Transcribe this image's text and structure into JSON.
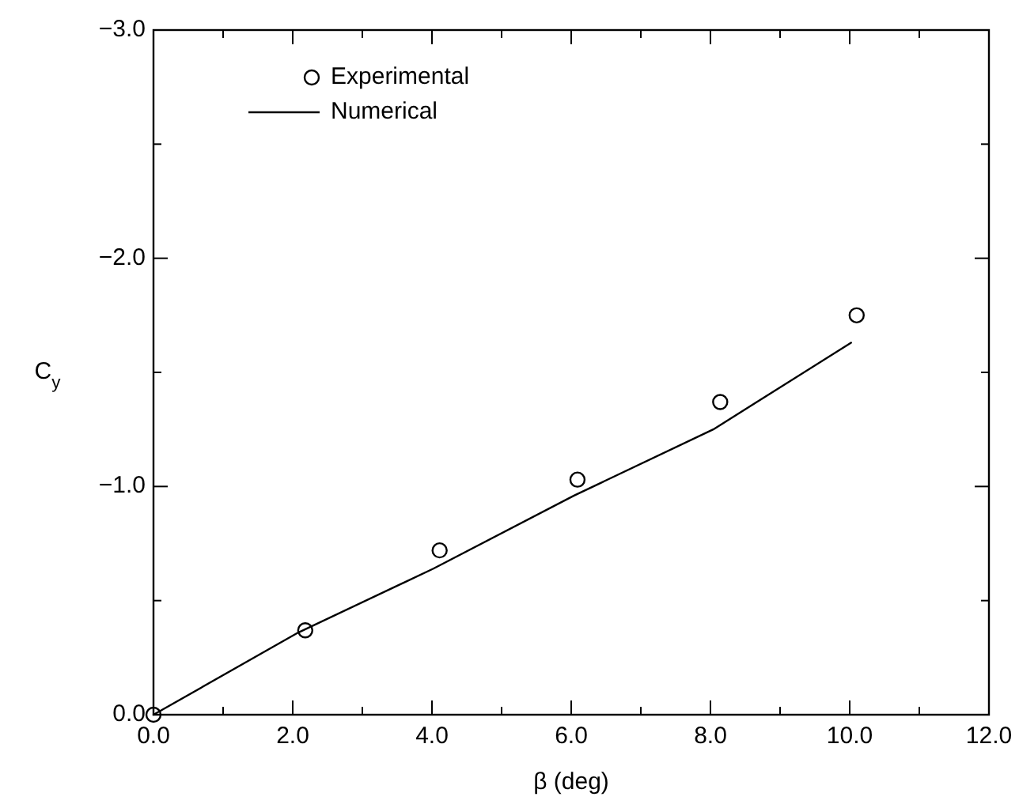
{
  "chart_data": {
    "type": "scatter",
    "xlabel": "β (deg)",
    "ylabel": "C$_{y}$",
    "xlim": [
      0,
      12
    ],
    "ylim": [
      0,
      -3
    ],
    "xticks": [
      {
        "value": 0,
        "label": "0.0"
      },
      {
        "value": 1,
        "label": null
      },
      {
        "value": 2,
        "label": "2.0"
      },
      {
        "value": 3,
        "label": null
      },
      {
        "value": 4,
        "label": "4.0"
      },
      {
        "value": 5,
        "label": null
      },
      {
        "value": 6,
        "label": "6.0"
      },
      {
        "value": 7,
        "label": null
      },
      {
        "value": 8,
        "label": "8.0"
      },
      {
        "value": 9,
        "label": null
      },
      {
        "value": 10,
        "label": "10.0"
      },
      {
        "value": 11,
        "label": null
      },
      {
        "value": 12,
        "label": "12.0"
      }
    ],
    "yticks": [
      {
        "value": 0,
        "label": "0.0"
      },
      {
        "value": -0.5,
        "label": null
      },
      {
        "value": -1,
        "label": "−1.0"
      },
      {
        "value": -1.5,
        "label": null
      },
      {
        "value": -2,
        "label": "−2.0"
      },
      {
        "value": -2.5,
        "label": null
      },
      {
        "value": -3,
        "label": "−3.0"
      }
    ],
    "grid": false,
    "legend": "top left",
    "series": [
      {
        "name": "Experimental",
        "marker": "circle",
        "color": "#000000",
        "x": [
          0,
          2.18,
          4.11,
          6.09,
          8.14,
          10.1
        ],
        "values": [
          0,
          -0.37,
          -0.72,
          -1.03,
          -1.37,
          -1.75
        ]
      },
      {
        "name": "Numerical",
        "type": "line",
        "marker": "none",
        "line_style": "solid",
        "color": "#000000",
        "x": [
          0,
          2.08,
          4.02,
          6.04,
          8.04,
          10.02
        ],
        "values": [
          0,
          -0.36,
          -0.64,
          -0.96,
          -1.25,
          -1.63
        ]
      }
    ]
  }
}
